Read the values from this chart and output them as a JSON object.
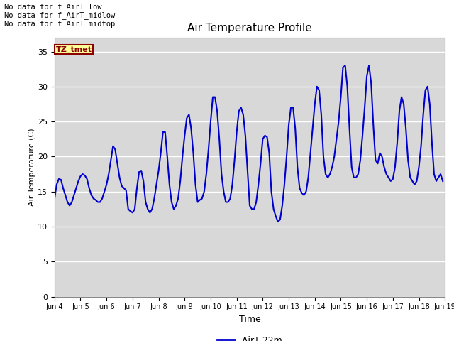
{
  "title": "Air Temperature Profile",
  "xlabel": "Time",
  "ylabel": "Air Temperature (C)",
  "ylim": [
    0,
    37
  ],
  "yticks": [
    0,
    5,
    10,
    15,
    20,
    25,
    30,
    35
  ],
  "xtick_labels": [
    "Jun 4",
    "Jun 5",
    "Jun 6",
    "Jun 7",
    "Jun 8",
    "Jun 9",
    "Jun 10",
    "Jun 11",
    "Jun 12",
    "Jun 13",
    "Jun 14",
    "Jun 15",
    "Jun 16",
    "Jun 17",
    "Jun 18",
    "Jun 19"
  ],
  "line_color": "#0000cc",
  "line_width": 1.5,
  "bg_color": "#d8d8d8",
  "fig_bg_color": "#ffffff",
  "legend_label": "AirT 22m",
  "no_data_texts": [
    "No data for f_AirT_low",
    "No data for f_AirT_midlow",
    "No data for f_AirT_midtop"
  ],
  "tz_label": "TZ_tmet",
  "grid_color": "#ffffff",
  "time_data": [
    4.0,
    4.083,
    4.167,
    4.25,
    4.333,
    4.417,
    4.5,
    4.583,
    4.667,
    4.75,
    4.833,
    4.917,
    5.0,
    5.083,
    5.167,
    5.25,
    5.333,
    5.417,
    5.5,
    5.583,
    5.667,
    5.75,
    5.833,
    5.917,
    6.0,
    6.083,
    6.167,
    6.25,
    6.333,
    6.417,
    6.5,
    6.583,
    6.667,
    6.75,
    6.833,
    6.917,
    7.0,
    7.083,
    7.167,
    7.25,
    7.333,
    7.417,
    7.5,
    7.583,
    7.667,
    7.75,
    7.833,
    7.917,
    8.0,
    8.083,
    8.167,
    8.25,
    8.333,
    8.417,
    8.5,
    8.583,
    8.667,
    8.75,
    8.833,
    8.917,
    9.0,
    9.083,
    9.167,
    9.25,
    9.333,
    9.417,
    9.5,
    9.583,
    9.667,
    9.75,
    9.833,
    9.917,
    10.0,
    10.083,
    10.167,
    10.25,
    10.333,
    10.417,
    10.5,
    10.583,
    10.667,
    10.75,
    10.833,
    10.917,
    11.0,
    11.083,
    11.167,
    11.25,
    11.333,
    11.417,
    11.5,
    11.583,
    11.667,
    11.75,
    11.833,
    11.917,
    12.0,
    12.083,
    12.167,
    12.25,
    12.333,
    12.417,
    12.5,
    12.583,
    12.667,
    12.75,
    12.833,
    12.917,
    13.0,
    13.083,
    13.167,
    13.25,
    13.333,
    13.417,
    13.5,
    13.583,
    13.667,
    13.75,
    13.833,
    13.917,
    14.0,
    14.083,
    14.167,
    14.25,
    14.333,
    14.417,
    14.5,
    14.583,
    14.667,
    14.75,
    14.833,
    14.917,
    15.0,
    15.083,
    15.167,
    15.25,
    15.333,
    15.417,
    15.5,
    15.583,
    15.667,
    15.75,
    15.833,
    15.917,
    16.0,
    16.083,
    16.167,
    16.25,
    16.333,
    16.417,
    16.5,
    16.583,
    16.667,
    16.75,
    16.833,
    16.917,
    17.0,
    17.083,
    17.167,
    17.25,
    17.333,
    17.417,
    17.5,
    17.583,
    17.667,
    17.75,
    17.833,
    17.917,
    18.0,
    18.083,
    18.167,
    18.25,
    18.333,
    18.417,
    18.5,
    18.583,
    18.667,
    18.75,
    18.833,
    18.917
  ],
  "temp_data": [
    13.9,
    16.0,
    16.8,
    16.7,
    15.5,
    14.5,
    13.5,
    13.0,
    13.5,
    14.5,
    15.5,
    16.5,
    17.2,
    17.5,
    17.3,
    16.8,
    15.5,
    14.5,
    14.0,
    13.8,
    13.5,
    13.5,
    14.0,
    15.0,
    16.0,
    17.5,
    19.5,
    21.5,
    21.0,
    19.0,
    17.0,
    15.8,
    15.5,
    15.2,
    12.5,
    12.2,
    12.0,
    12.5,
    15.5,
    17.8,
    18.0,
    16.5,
    13.5,
    12.5,
    12.0,
    12.5,
    14.0,
    16.0,
    18.0,
    20.5,
    23.5,
    23.5,
    20.0,
    16.0,
    13.5,
    12.5,
    13.0,
    14.0,
    16.5,
    20.0,
    23.0,
    25.5,
    26.0,
    24.0,
    20.5,
    16.0,
    13.5,
    13.8,
    14.0,
    15.0,
    17.5,
    21.0,
    25.0,
    28.5,
    28.5,
    26.5,
    22.5,
    17.5,
    15.0,
    13.5,
    13.5,
    14.0,
    16.0,
    19.5,
    23.5,
    26.5,
    27.0,
    26.0,
    23.0,
    18.0,
    13.0,
    12.5,
    12.5,
    13.5,
    16.0,
    19.0,
    22.5,
    23.0,
    22.8,
    20.5,
    15.0,
    12.5,
    11.5,
    10.7,
    11.0,
    13.0,
    16.0,
    20.0,
    24.5,
    27.0,
    27.0,
    24.0,
    18.5,
    15.5,
    14.8,
    14.5,
    15.0,
    17.0,
    20.5,
    24.0,
    27.5,
    30.0,
    29.5,
    26.0,
    20.0,
    17.5,
    17.0,
    17.5,
    18.5,
    20.0,
    22.5,
    25.0,
    28.5,
    32.7,
    33.0,
    30.0,
    24.0,
    18.5,
    17.0,
    17.0,
    17.5,
    19.5,
    23.0,
    27.0,
    31.5,
    33.0,
    30.5,
    24.5,
    19.5,
    19.0,
    20.5,
    20.0,
    18.5,
    17.5,
    17.0,
    16.5,
    16.8,
    18.5,
    22.0,
    26.5,
    28.5,
    27.5,
    24.0,
    19.5,
    17.0,
    16.5,
    16.0,
    16.5,
    18.5,
    21.5,
    26.0,
    29.5,
    30.0,
    27.5,
    22.0,
    17.5,
    16.5,
    17.0,
    17.5,
    16.5
  ]
}
